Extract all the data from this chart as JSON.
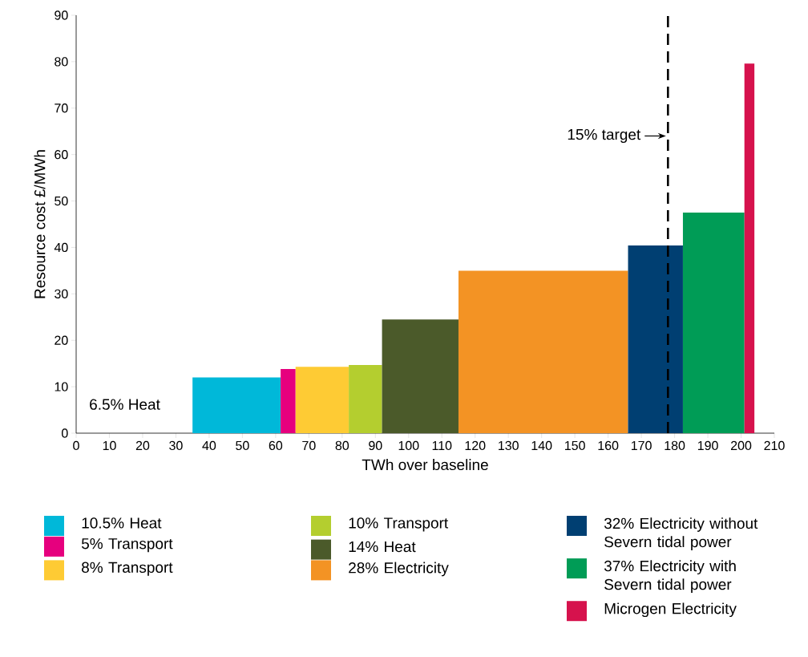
{
  "chart_data": {
    "type": "area",
    "xlabel": "TWh over baseline",
    "ylabel": "Resource cost £/MWh",
    "xlim": [
      0,
      210
    ],
    "ylim": [
      0,
      90
    ],
    "xticks": [
      0,
      10,
      20,
      30,
      40,
      50,
      60,
      70,
      80,
      90,
      100,
      110,
      120,
      130,
      140,
      150,
      160,
      170,
      180,
      190,
      200,
      210
    ],
    "yticks": [
      0,
      10,
      20,
      30,
      40,
      50,
      60,
      70,
      80,
      90
    ],
    "legend": "bottom",
    "series": [
      {
        "name": "10.5% Heat",
        "color": "#00b8d9",
        "x": [
          35,
          61.5
        ],
        "values": [
          12,
          12
        ]
      },
      {
        "name": "5% Transport",
        "color": "#e6007e",
        "x": [
          61.5,
          66
        ],
        "values": [
          13.8,
          13.8
        ]
      },
      {
        "name": "8% Transport",
        "color": "#fecb34",
        "x": [
          66,
          82
        ],
        "values": [
          14.3,
          14.3
        ]
      },
      {
        "name": "10% Transport",
        "color": "#b4ce2f",
        "x": [
          82,
          92
        ],
        "values": [
          14.7,
          14.7
        ]
      },
      {
        "name": "14% Heat",
        "color": "#4b5a2a",
        "x": [
          92,
          115
        ],
        "values": [
          24.5,
          24.5
        ]
      },
      {
        "name": "28% Electricity",
        "color": "#f39324",
        "x": [
          115,
          166
        ],
        "values": [
          35,
          35
        ]
      },
      {
        "name": "32% Electricity without Severn tidal power",
        "color": "#003f72",
        "x": [
          166,
          182.5
        ],
        "values": [
          40.4,
          40.4
        ]
      },
      {
        "name": "37% Electricity with Severn tidal power",
        "color": "#009c56",
        "x": [
          182.5,
          201
        ],
        "values": [
          47.5,
          47.5
        ]
      },
      {
        "name": "Microgen Electricity",
        "color": "#d6124d",
        "x": [
          201,
          204
        ],
        "values": [
          79.6,
          79.6
        ]
      }
    ],
    "ref_lines": [
      {
        "axis": "x",
        "value": 178,
        "label": "15% target",
        "color": "#000000",
        "line_style": "dashed"
      }
    ],
    "annotations": [
      "6.5% Heat"
    ]
  }
}
